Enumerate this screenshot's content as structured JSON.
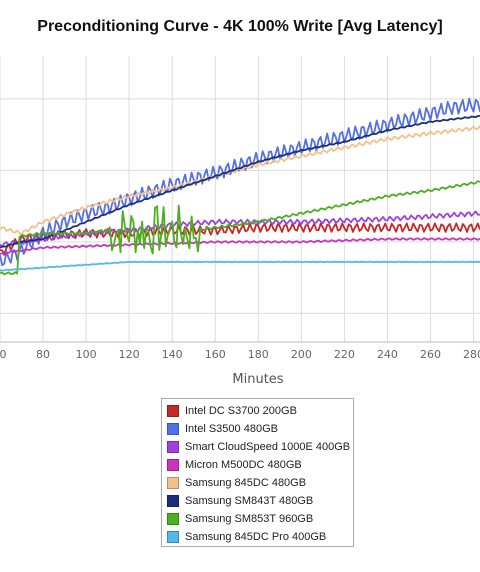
{
  "chart_data": {
    "type": "line",
    "title": "Preconditioning Curve - 4K 100% Write [Avg Latency]",
    "xlabel": "Minutes",
    "ylabel": "",
    "x_ticks": [
      "0",
      "80",
      "100",
      "120",
      "140",
      "160",
      "180",
      "200",
      "220",
      "240",
      "260",
      "280"
    ],
    "xlim": [
      60,
      283
    ],
    "ylim": [
      0,
      100
    ],
    "grid": true,
    "legend_position": "bottom",
    "series": [
      {
        "name": "Intel DC S3700 200GB",
        "color": "#c62828",
        "x": [
          60,
          70,
          80,
          100,
          120,
          140,
          160,
          180,
          200,
          240,
          283
        ],
        "y": [
          31,
          36,
          37,
          38,
          38,
          39,
          39,
          40,
          40,
          40,
          40
        ],
        "noise": 1.5
      },
      {
        "name": "Intel S3500 480GB",
        "color": "#5470e8",
        "x": [
          60,
          70,
          80,
          90,
          100,
          110,
          120,
          140,
          160,
          180,
          200,
          220,
          240,
          260,
          270,
          283
        ],
        "y": [
          28,
          32,
          38,
          42,
          45,
          47,
          50,
          55,
          59,
          64,
          68,
          72,
          76,
          80,
          82,
          83
        ],
        "noise": 2.5
      },
      {
        "name": "Smart CloudSpeed 1000E 400GB",
        "color": "#9c44dc",
        "x": [
          60,
          80,
          100,
          120,
          140,
          160,
          180,
          200,
          240,
          283
        ],
        "y": [
          34,
          36,
          38,
          39,
          41,
          42,
          42,
          42,
          43,
          45
        ],
        "noise": 0.8
      },
      {
        "name": "Micron M500DC 480GB",
        "color": "#cc33bb",
        "x": [
          60,
          80,
          120,
          160,
          200,
          240,
          283
        ],
        "y": [
          31,
          33,
          34,
          35,
          35,
          36,
          36
        ],
        "noise": 0.3
      },
      {
        "name": "Samsung 845DC 480GB",
        "color": "#f2c28a",
        "x": [
          60,
          70,
          80,
          100,
          120,
          140,
          160,
          180,
          200,
          220,
          240,
          260,
          283
        ],
        "y": [
          40,
          38,
          42,
          47,
          51,
          54,
          58,
          62,
          65,
          68,
          71,
          73,
          75
        ],
        "noise": 0.6
      },
      {
        "name": "Samsung SM843T 480GB",
        "color": "#1a2f7a",
        "x": [
          60,
          70,
          80,
          100,
          120,
          140,
          160,
          180,
          200,
          220,
          240,
          260,
          283
        ],
        "y": [
          33,
          35,
          36,
          42,
          48,
          53,
          58,
          63,
          67,
          70,
          74,
          77,
          79
        ],
        "noise": 0.2
      },
      {
        "name": "Samsung SM853T 960GB",
        "color": "#4caf1f",
        "x": [
          60,
          68,
          69,
          80,
          100,
          110,
          150,
          160,
          180,
          200,
          220,
          240,
          260,
          283
        ],
        "y": [
          24,
          24,
          37,
          38,
          38,
          39,
          39,
          40,
          42,
          45,
          48,
          51,
          53,
          56
        ],
        "noise": 0.4,
        "noisy_range": [
          110,
          152
        ],
        "noisy_amp": 9
      },
      {
        "name": "Samsung 845DC Pro 400GB",
        "color": "#53b8ea",
        "x": [
          60,
          80,
          100,
          120,
          160,
          200,
          240,
          283
        ],
        "y": [
          25,
          26,
          27,
          28,
          28,
          28,
          28,
          28
        ],
        "noise": 0.1
      }
    ]
  }
}
